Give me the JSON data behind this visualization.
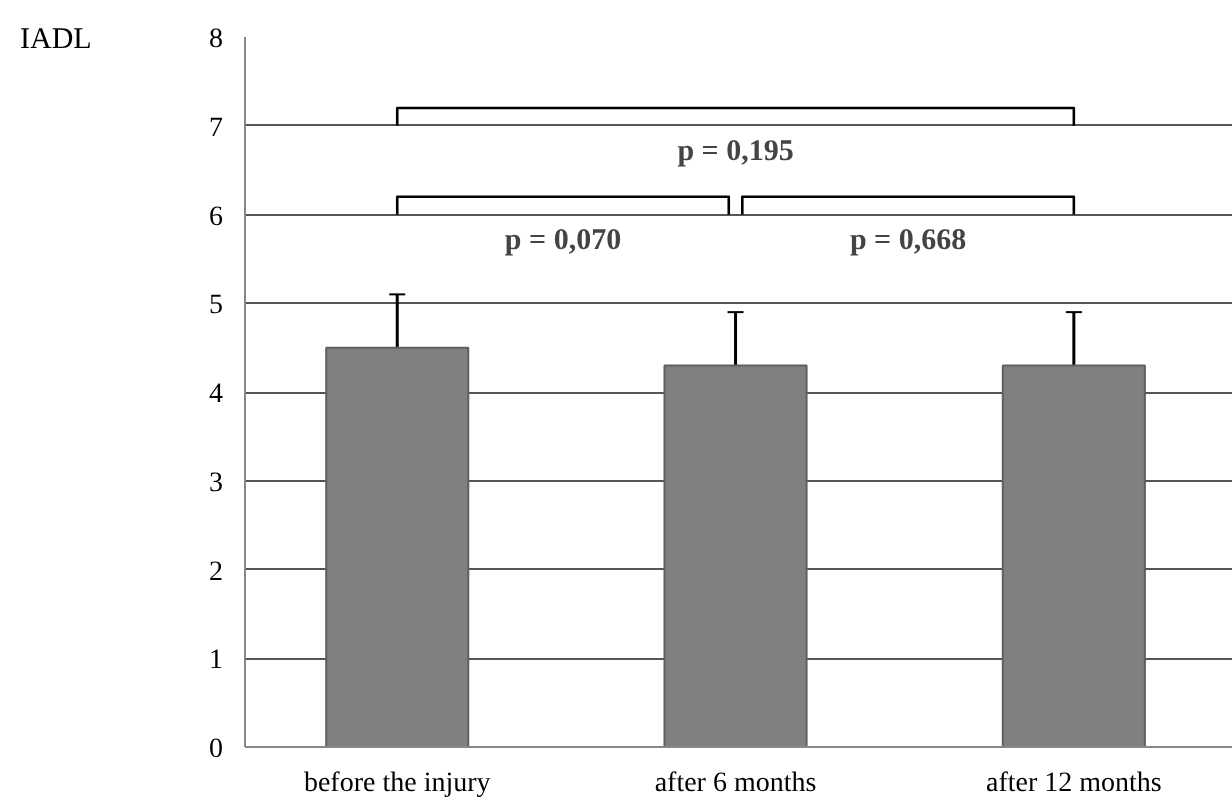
{
  "chart_data": {
    "type": "bar",
    "ylabel": "IADL",
    "categories": [
      "before the injury",
      "after 6 months",
      "after 12 months"
    ],
    "values": [
      4.5,
      4.3,
      4.3
    ],
    "color": "#808080",
    "errors": [
      0.6,
      0.6,
      0.6
    ],
    "ylim": [
      0,
      8
    ],
    "yticks": [
      0,
      1,
      2,
      3,
      4,
      5,
      6,
      7,
      8
    ],
    "grid": "y",
    "annotations": [
      "p = 0,195",
      "p = 0,070",
      "p = 0,668"
    ]
  }
}
